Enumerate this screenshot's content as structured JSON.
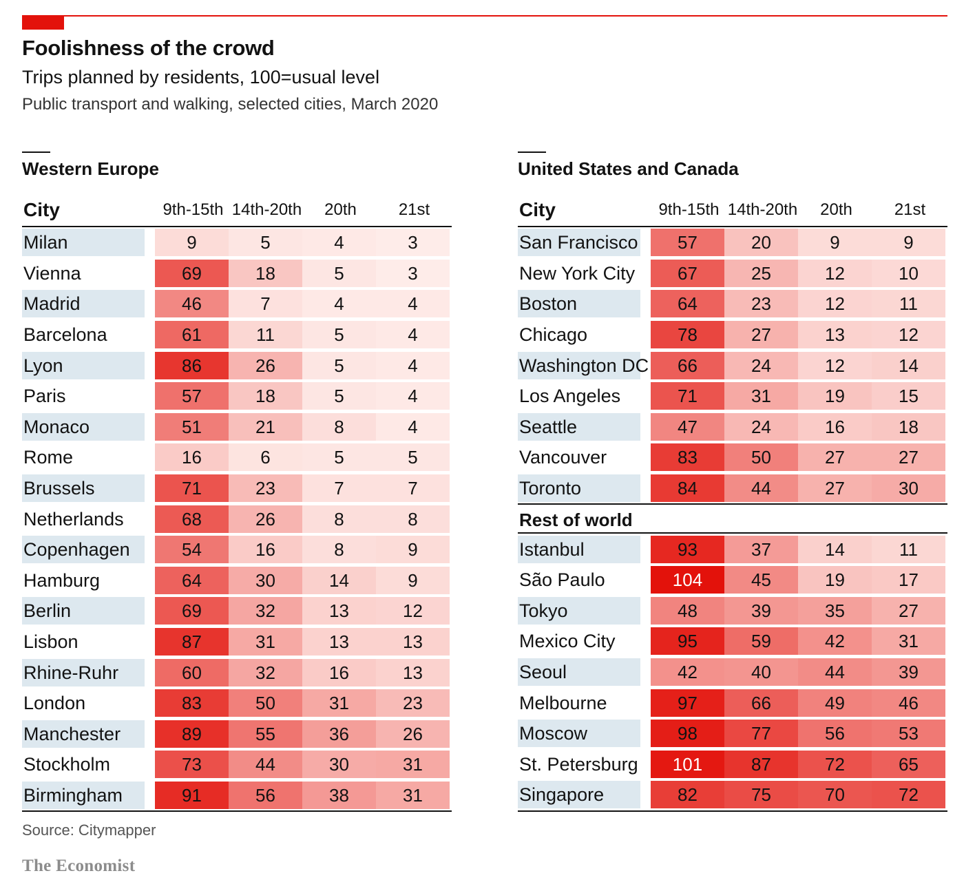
{
  "header": {
    "title": "Foolishness of the crowd",
    "subtitle": "Trips planned by residents, 100=usual level",
    "subtitle2": "Public transport and walking, selected cities, March 2020"
  },
  "columns": {
    "city": "City",
    "periods": [
      "9th-15th",
      "14th-20th",
      "20th",
      "21st"
    ]
  },
  "colors": {
    "accent": "#e3120b",
    "city_band": "#dde8ef",
    "heat_max": "#e3120b",
    "heat_min": "#ffffff"
  },
  "chart_data": [
    {
      "type": "table",
      "title": "Western Europe",
      "columns": [
        "9th-15th",
        "14th-20th",
        "20th",
        "21st"
      ],
      "rows": [
        {
          "city": "Milan",
          "values": [
            9,
            5,
            4,
            3
          ]
        },
        {
          "city": "Vienna",
          "values": [
            69,
            18,
            5,
            3
          ]
        },
        {
          "city": "Madrid",
          "values": [
            46,
            7,
            4,
            4
          ]
        },
        {
          "city": "Barcelona",
          "values": [
            61,
            11,
            5,
            4
          ]
        },
        {
          "city": "Lyon",
          "values": [
            86,
            26,
            5,
            4
          ]
        },
        {
          "city": "Paris",
          "values": [
            57,
            18,
            5,
            4
          ]
        },
        {
          "city": "Monaco",
          "values": [
            51,
            21,
            8,
            4
          ]
        },
        {
          "city": "Rome",
          "values": [
            16,
            6,
            5,
            5
          ]
        },
        {
          "city": "Brussels",
          "values": [
            71,
            23,
            7,
            7
          ]
        },
        {
          "city": "Netherlands",
          "values": [
            68,
            26,
            8,
            8
          ]
        },
        {
          "city": "Copenhagen",
          "values": [
            54,
            16,
            8,
            9
          ]
        },
        {
          "city": "Hamburg",
          "values": [
            64,
            30,
            14,
            9
          ]
        },
        {
          "city": "Berlin",
          "values": [
            69,
            32,
            13,
            12
          ]
        },
        {
          "city": "Lisbon",
          "values": [
            87,
            31,
            13,
            13
          ]
        },
        {
          "city": "Rhine-Ruhr",
          "values": [
            60,
            32,
            16,
            13
          ]
        },
        {
          "city": "London",
          "values": [
            83,
            50,
            31,
            23
          ]
        },
        {
          "city": "Manchester",
          "values": [
            89,
            55,
            36,
            26
          ]
        },
        {
          "city": "Stockholm",
          "values": [
            73,
            44,
            30,
            31
          ]
        },
        {
          "city": "Birmingham",
          "values": [
            91,
            56,
            38,
            31
          ]
        }
      ]
    },
    {
      "type": "table",
      "title": "United States and Canada",
      "columns": [
        "9th-15th",
        "14th-20th",
        "20th",
        "21st"
      ],
      "rows": [
        {
          "city": "San Francisco",
          "values": [
            57,
            20,
            9,
            9
          ]
        },
        {
          "city": "New York City",
          "values": [
            67,
            25,
            12,
            10
          ]
        },
        {
          "city": "Boston",
          "values": [
            64,
            23,
            12,
            11
          ]
        },
        {
          "city": "Chicago",
          "values": [
            78,
            27,
            13,
            12
          ]
        },
        {
          "city": "Washington DC",
          "values": [
            66,
            24,
            12,
            14
          ]
        },
        {
          "city": "Los Angeles",
          "values": [
            71,
            31,
            19,
            15
          ]
        },
        {
          "city": "Seattle",
          "values": [
            47,
            24,
            16,
            18
          ]
        },
        {
          "city": "Vancouver",
          "values": [
            83,
            50,
            27,
            27
          ]
        },
        {
          "city": "Toronto",
          "values": [
            84,
            44,
            27,
            30
          ]
        }
      ]
    },
    {
      "type": "table",
      "title": "Rest of world",
      "columns": [
        "9th-15th",
        "14th-20th",
        "20th",
        "21st"
      ],
      "rows": [
        {
          "city": "Istanbul",
          "values": [
            93,
            37,
            14,
            11
          ]
        },
        {
          "city": "São Paulo",
          "values": [
            104,
            45,
            19,
            17
          ]
        },
        {
          "city": "Tokyo",
          "values": [
            48,
            39,
            35,
            27
          ]
        },
        {
          "city": "Mexico City",
          "values": [
            95,
            59,
            42,
            31
          ]
        },
        {
          "city": "Seoul",
          "values": [
            42,
            40,
            44,
            39
          ]
        },
        {
          "city": "Melbourne",
          "values": [
            97,
            66,
            49,
            46
          ]
        },
        {
          "city": "Moscow",
          "values": [
            98,
            77,
            56,
            53
          ]
        },
        {
          "city": "St. Petersburg",
          "values": [
            101,
            87,
            72,
            65
          ]
        },
        {
          "city": "Singapore",
          "values": [
            82,
            75,
            70,
            72
          ]
        }
      ]
    }
  ],
  "footer": {
    "source": "Source: Citymapper",
    "logo": "The Economist"
  }
}
